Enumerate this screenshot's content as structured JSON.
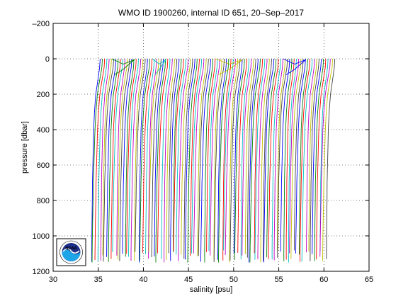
{
  "chart_data": {
    "type": "line",
    "title": "WMO ID 1900260, internal ID 651, 20–Sep–2017",
    "xlabel": "salinity [psu]",
    "ylabel": "pressure [dbar]",
    "xlim": [
      30,
      65
    ],
    "ylim": [
      -200,
      1200
    ],
    "y_reversed": true,
    "grid": true,
    "grid_style": "dotted",
    "xticks": [
      "30",
      "35",
      "40",
      "45",
      "50",
      "55",
      "60",
      "65"
    ],
    "yticks": [
      "–200",
      "0",
      "200",
      "400",
      "600",
      "800",
      "1000",
      "1200"
    ],
    "series_colors": [
      "#0000ff",
      "#008000",
      "#ff0000",
      "#00bfbf",
      "#bf00bf",
      "#bfbf00",
      "#404040"
    ],
    "profile_count": 105,
    "profile_spacing_psu": 0.25,
    "first_profile_surface_salinity": 35.2,
    "first_profile_bottom_salinity": 34.2,
    "pressure_levels": [
      0,
      10,
      50,
      100,
      150,
      200,
      300,
      400,
      500,
      600,
      700,
      800,
      900,
      1000,
      1100,
      1150
    ],
    "base_profile_offset_from_surface": [
      0,
      0,
      -0.05,
      -0.2,
      -0.35,
      -0.5,
      -0.65,
      -0.75,
      -0.8,
      -0.85,
      -0.9,
      -0.92,
      -0.95,
      -0.98,
      -1.0,
      -1.0
    ],
    "bottom_pressure_range": [
      1080,
      1160
    ],
    "logo_label": "NOAA",
    "logo_colors": {
      "ring": "#ffffff",
      "sky": "#1c2f8a",
      "sea": "#1ea5e8",
      "bird": "#ffffff"
    }
  }
}
